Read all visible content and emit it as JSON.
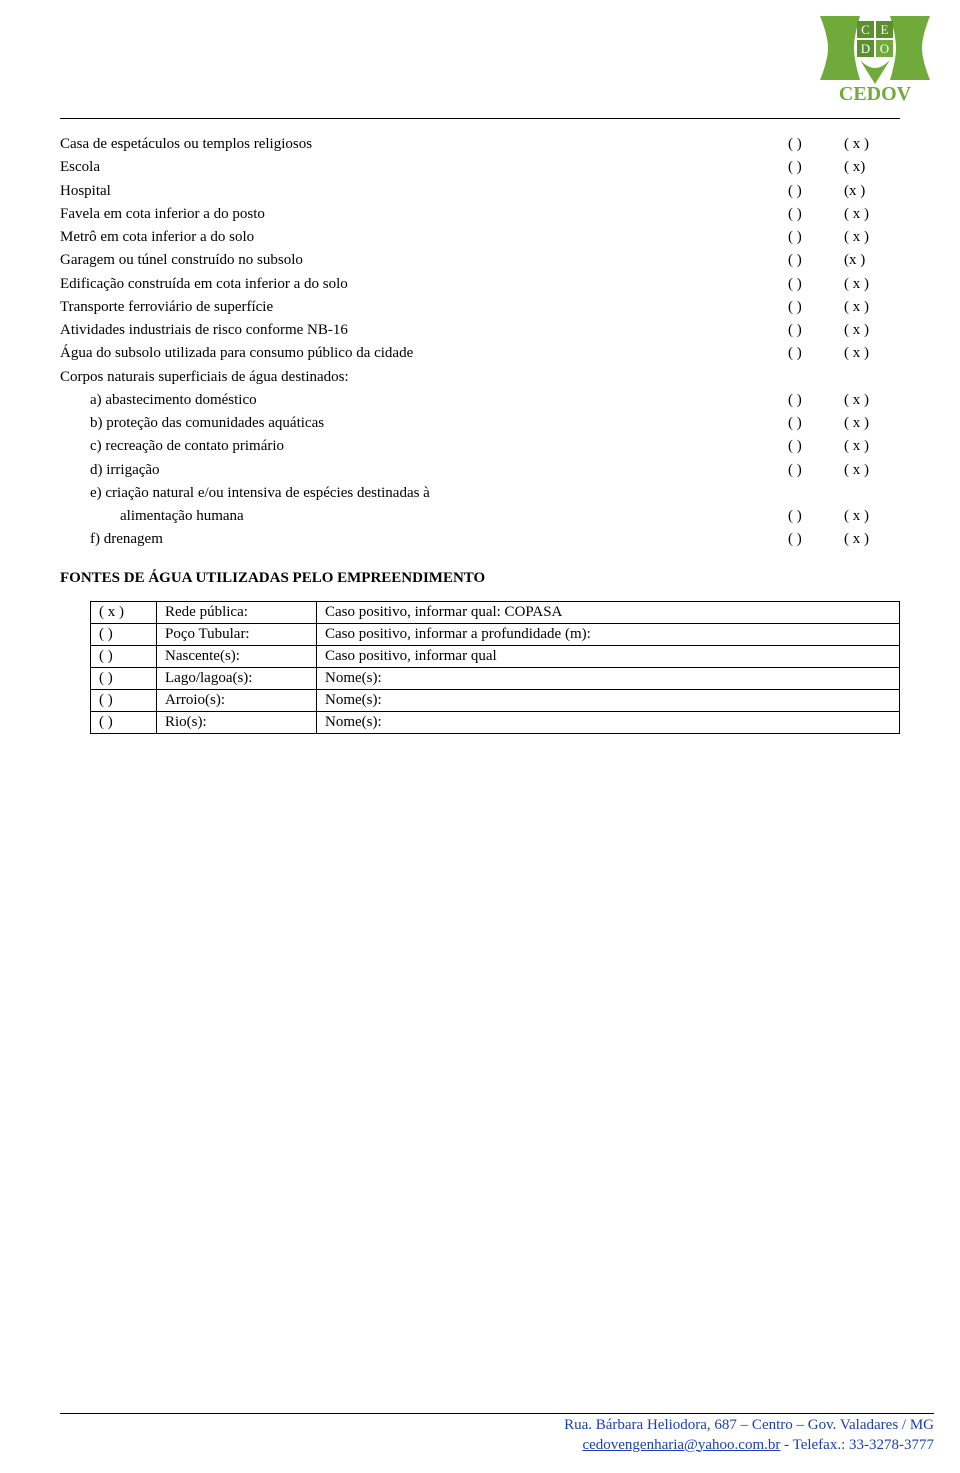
{
  "logo": {
    "grid_letters": [
      "C",
      "E",
      "D",
      "O"
    ],
    "name": "CEDOV",
    "green": "#6faa3a",
    "green_dark": "#5c8f2e",
    "white": "#ffffff"
  },
  "items": [
    {
      "label": "Casa de espetáculos ou templos religiosos",
      "pad": "",
      "c1": "( )",
      "c2": "( x )"
    },
    {
      "label": "Escola",
      "pad": "",
      "c1": "( )",
      "c2": "( x)"
    },
    {
      "label": "Hospital",
      "pad": "",
      "c1": "( )",
      "c2": "(x )"
    },
    {
      "label": "Favela em cota inferior a do posto",
      "pad": "",
      "c1": "( )",
      "c2": "( x )"
    },
    {
      "label": "Metrô em cota inferior a do solo",
      "pad": "",
      "c1": "( )",
      "c2": "( x )"
    },
    {
      "label": "Garagem ou túnel construído no subsolo",
      "pad": "",
      "c1": "( )",
      "c2": "(x  )"
    },
    {
      "label": "Edificação construída em cota inferior a do solo",
      "pad": "",
      "c1": "( )",
      "c2": "( x )"
    },
    {
      "label": "Transporte ferroviário de superfície",
      "pad": "",
      "c1": "( )",
      "c2": "( x )"
    },
    {
      "label": "Atividades industriais de risco conforme NB-16",
      "pad": "",
      "c1": "( )",
      "c2": "( x )"
    },
    {
      "label": "Água do subsolo utilizada para consumo público da cidade",
      "pad": "",
      "c1": "( )",
      "c2": "( x )"
    },
    {
      "label": "Corpos naturais superficiais de água destinados:",
      "pad": "",
      "c1": "",
      "c2": ""
    },
    {
      "label": "a) abastecimento doméstico",
      "pad": "a",
      "c1": "( )",
      "c2": "( x )"
    },
    {
      "label": "b) proteção das comunidades aquáticas",
      "pad": "a",
      "c1": "( )",
      "c2": "( x )"
    },
    {
      "label": "c) recreação de contato primário",
      "pad": "a",
      "c1": "( )",
      "c2": "( x )"
    },
    {
      "label": "d) irrigação",
      "pad": "a",
      "c1": "( )",
      "c2": "( x )"
    },
    {
      "label": "e) criação natural e/ou intensiva de espécies destinadas à",
      "pad": "a",
      "c1": "",
      "c2": ""
    },
    {
      "label": "alimentação  humana",
      "pad": "b",
      "c1": "( )",
      "c2": "( x )"
    },
    {
      "label": "f) drenagem",
      "pad": "a",
      "c1": "( )",
      "c2": "( x )"
    }
  ],
  "section_title": "FONTES DE ÁGUA UTILIZADAS PELO EMPREENDIMENTO",
  "fontes": [
    {
      "mark": "(   x   )",
      "source": "Rede pública:",
      "desc": "Caso positivo, informar qual: COPASA"
    },
    {
      "mark": "(        )",
      "source": "Poço Tubular:",
      "desc": "Caso positivo, informar a profundidade (m):"
    },
    {
      "mark": "(        )",
      "source": "Nascente(s):",
      "desc": "Caso positivo, informar qual"
    },
    {
      "mark": "(        )",
      "source": "Lago/lagoa(s):",
      "desc": "Nome(s):"
    },
    {
      "mark": "(        )",
      "source": "Arroio(s):",
      "desc": "Nome(s):"
    },
    {
      "mark": "(        )",
      "source": "Rio(s):",
      "desc": "Nome(s):"
    }
  ],
  "footer": {
    "line1_a": "Rua. Bárbara Heliodora, 687 – Centro – Gov. Valadares / MG",
    "line2_a": "cedovengenharia@yahoo.com.br",
    "line2_b": " - Telefax.: 33-3278-3777"
  }
}
